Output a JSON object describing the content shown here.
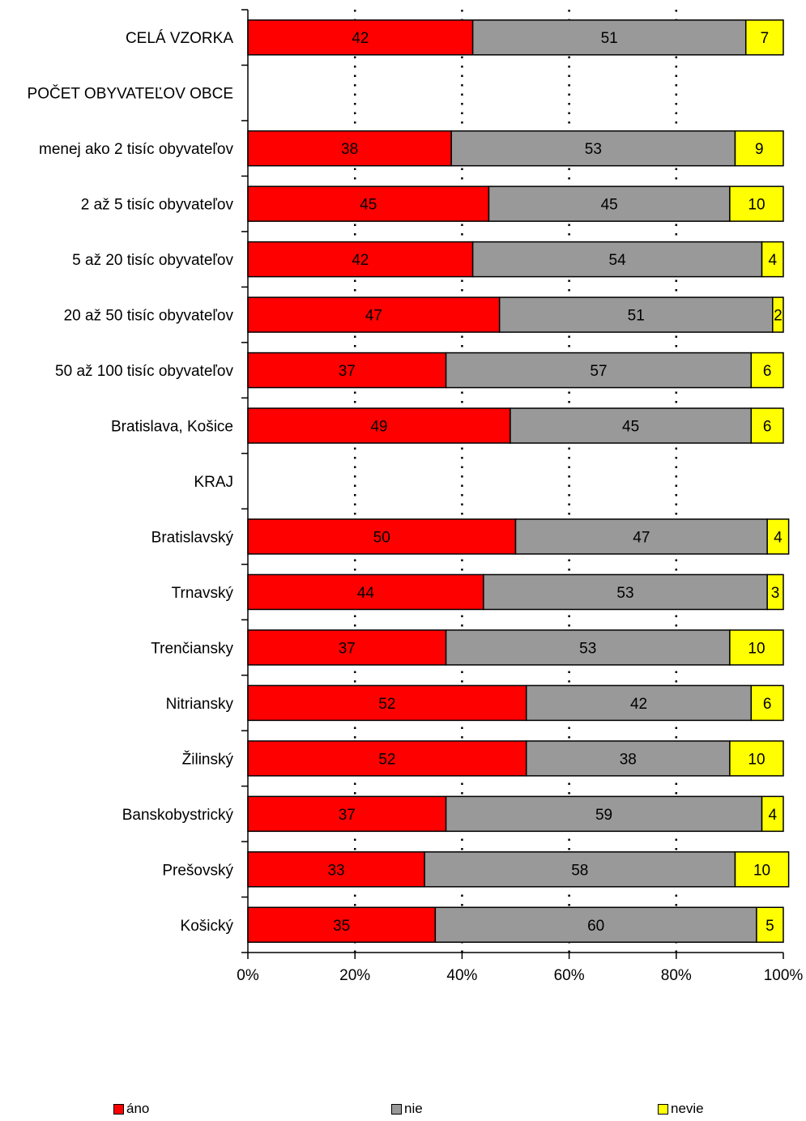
{
  "chart_data": {
    "type": "bar",
    "orientation": "horizontal",
    "stacked": true,
    "percent": true,
    "title": "",
    "xlabel": "",
    "ylabel": "",
    "xlim": [
      0,
      100
    ],
    "xticks": [
      "0%",
      "20%",
      "40%",
      "60%",
      "80%",
      "100%"
    ],
    "grid": "vertical dotted",
    "legend_position": "bottom",
    "categories": [
      "CELÁ VZORKA",
      "POČET OBYVATEĽOV OBCE",
      "menej ako 2 tisíc obyvateľov",
      "2 až 5 tisíc obyvateľov",
      "5 až 20 tisíc obyvateľov",
      "20 až 50 tisíc obyvateľov",
      "50 až 100 tisíc obyvateľov",
      "Bratislava, Košice",
      "KRAJ",
      "Bratislavský",
      "Trnavský",
      "Trenčiansky",
      "Nitriansky",
      "Žilinský",
      "Banskobystrický",
      "Prešovský",
      "Košický"
    ],
    "series": [
      {
        "name": "áno",
        "color": "#ff0000",
        "values": [
          42,
          null,
          38,
          45,
          42,
          47,
          37,
          49,
          null,
          50,
          44,
          37,
          52,
          52,
          37,
          33,
          35
        ]
      },
      {
        "name": "nie",
        "color": "#999999",
        "values": [
          51,
          null,
          53,
          45,
          54,
          51,
          57,
          45,
          null,
          47,
          53,
          53,
          42,
          38,
          59,
          58,
          60
        ]
      },
      {
        "name": "nevie",
        "color": "#ffff00",
        "values": [
          7,
          null,
          9,
          10,
          4,
          2,
          6,
          6,
          null,
          4,
          3,
          10,
          6,
          10,
          4,
          10,
          5
        ]
      }
    ]
  }
}
